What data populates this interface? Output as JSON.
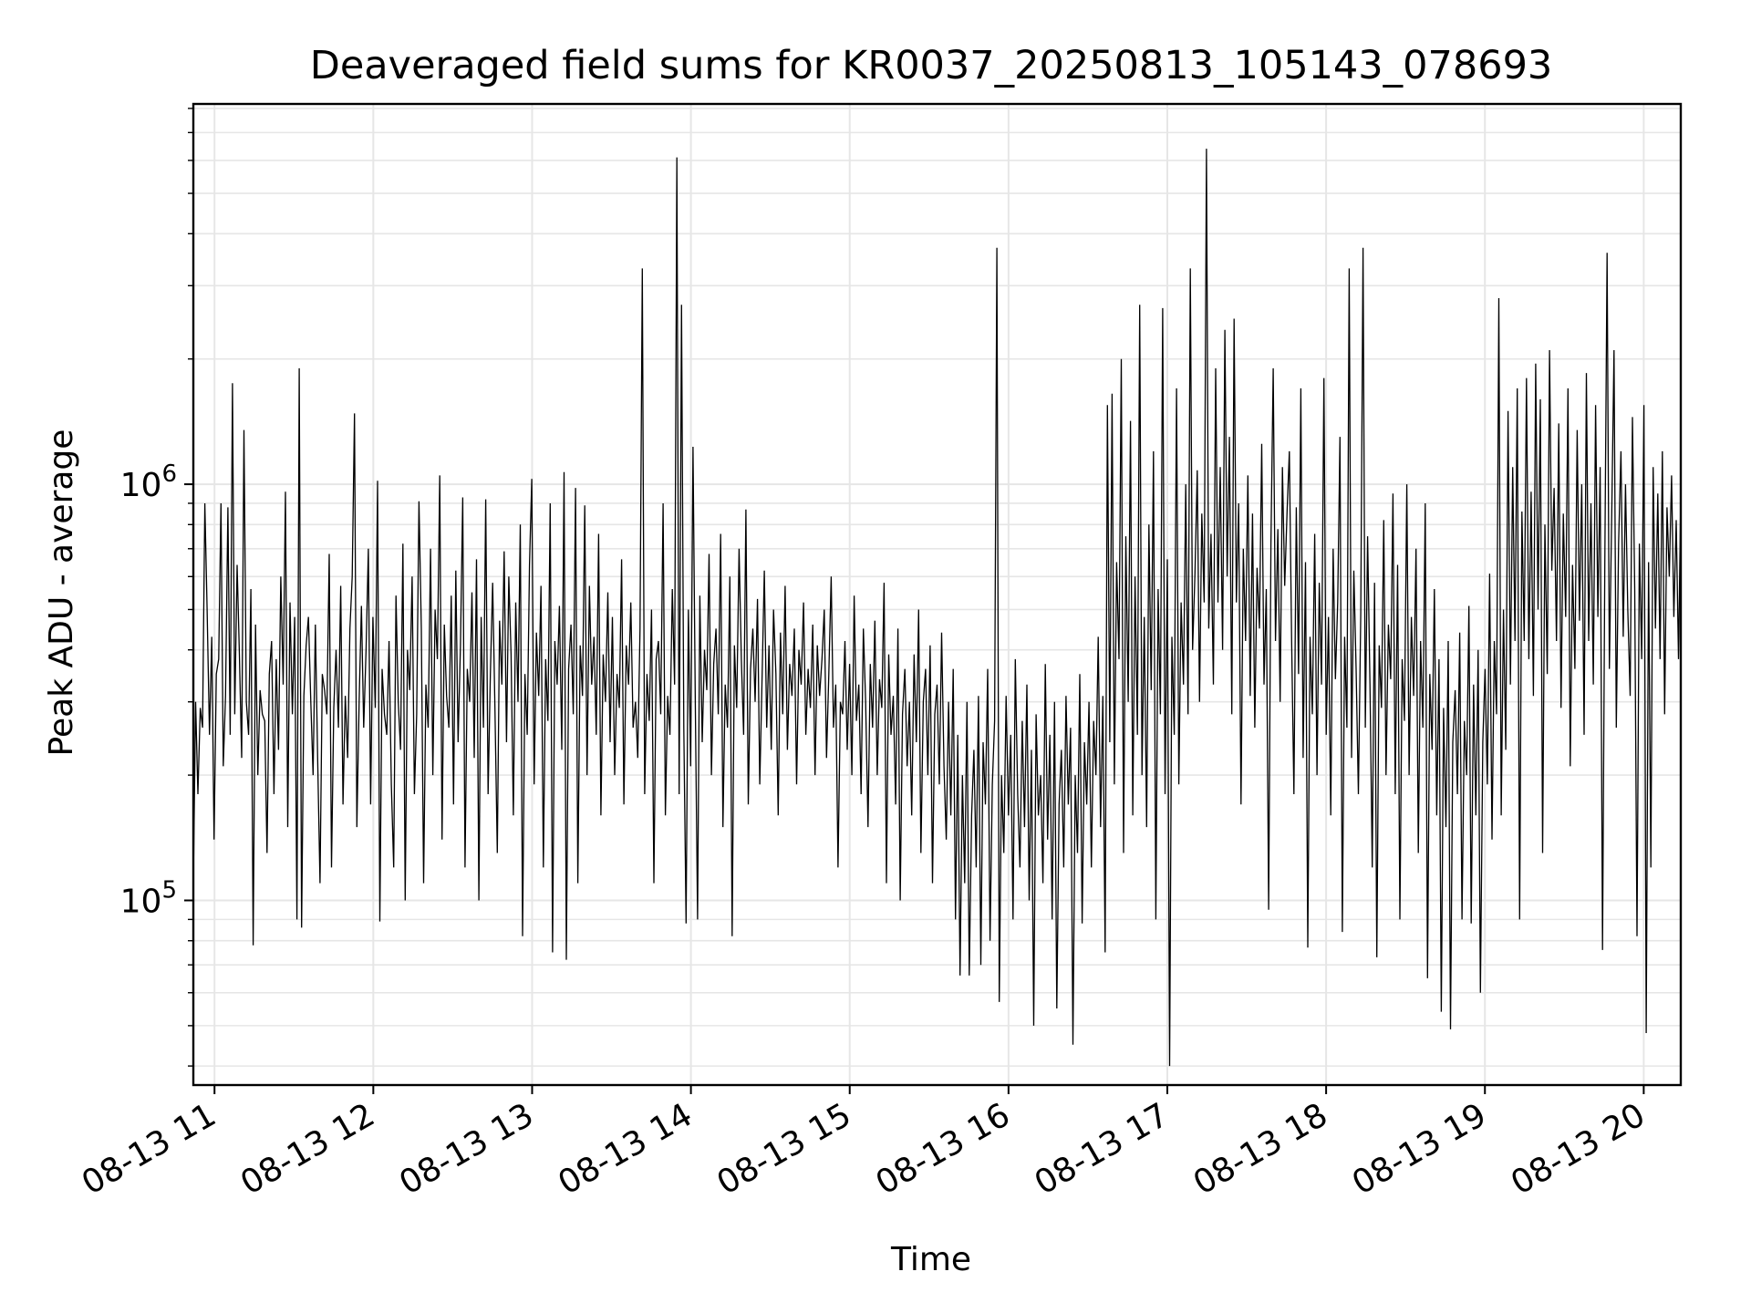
{
  "chart_data": {
    "type": "line",
    "title": "Deaveraged field sums for KR0037_20250813_105143_078693",
    "xlabel": "Time",
    "ylabel": "Peak ADU - average",
    "yscale": "log",
    "ylim": [
      36000,
      8200000
    ],
    "xlim": [
      "2025-08-13 10:52",
      "2025-08-13 20:14"
    ],
    "grid": true,
    "line_color": "#000000",
    "x_ticks": [
      "08-13 11",
      "08-13 12",
      "08-13 13",
      "08-13 14",
      "08-13 15",
      "08-13 16",
      "08-13 17",
      "08-13 18",
      "08-13 19",
      "08-13 20"
    ],
    "y_ticks": [
      {
        "value": 100000,
        "base": "10",
        "exp": "5"
      },
      {
        "value": 1000000,
        "base": "10",
        "exp": "6"
      }
    ],
    "series": [
      {
        "x_start": "2025-08-13 10:52",
        "x_end": "2025-08-13 20:14",
        "values": [
          110000,
          300000,
          180000,
          290000,
          260000,
          900000,
          500000,
          250000,
          430000,
          140000,
          350000,
          380000,
          900000,
          210000,
          310000,
          880000,
          250000,
          1750000,
          280000,
          640000,
          390000,
          220000,
          1350000,
          300000,
          250000,
          560000,
          78000,
          460000,
          200000,
          320000,
          280000,
          270000,
          130000,
          350000,
          420000,
          180000,
          380000,
          230000,
          600000,
          330000,
          960000,
          150000,
          520000,
          280000,
          480000,
          90000,
          1900000,
          86000,
          310000,
          410000,
          480000,
          300000,
          200000,
          460000,
          220000,
          110000,
          350000,
          320000,
          280000,
          680000,
          120000,
          290000,
          400000,
          260000,
          570000,
          170000,
          310000,
          220000,
          450000,
          600000,
          1480000,
          150000,
          300000,
          510000,
          260000,
          400000,
          700000,
          170000,
          480000,
          290000,
          1020000,
          89000,
          360000,
          280000,
          250000,
          420000,
          190000,
          120000,
          540000,
          300000,
          230000,
          720000,
          100000,
          400000,
          320000,
          600000,
          180000,
          280000,
          910000,
          450000,
          110000,
          330000,
          260000,
          700000,
          200000,
          500000,
          380000,
          1050000,
          140000,
          460000,
          310000,
          260000,
          540000,
          170000,
          620000,
          240000,
          410000,
          930000,
          120000,
          360000,
          300000,
          550000,
          220000,
          660000,
          100000,
          480000,
          260000,
          920000,
          180000,
          350000,
          580000,
          290000,
          130000,
          470000,
          330000,
          690000,
          240000,
          600000,
          390000,
          160000,
          520000,
          300000,
          800000,
          82000,
          350000,
          250000,
          640000,
          1030000,
          190000,
          440000,
          310000,
          570000,
          120000,
          380000,
          270000,
          900000,
          75000,
          420000,
          330000,
          510000,
          230000,
          1070000,
          72000,
          360000,
          460000,
          280000,
          980000,
          110000,
          410000,
          310000,
          890000,
          200000,
          570000,
          330000,
          430000,
          250000,
          760000,
          160000,
          390000,
          300000,
          550000,
          240000,
          480000,
          200000,
          350000,
          290000,
          660000,
          170000,
          410000,
          330000,
          520000,
          260000,
          300000,
          220000,
          450000,
          3300000,
          180000,
          350000,
          270000,
          500000,
          110000,
          380000,
          420000,
          280000,
          900000,
          160000,
          310000,
          250000,
          560000,
          330000,
          6100000,
          180000,
          2700000,
          260000,
          88000,
          500000,
          210000,
          1230000,
          300000,
          90000,
          540000,
          240000,
          400000,
          320000,
          680000,
          200000,
          370000,
          450000,
          280000,
          760000,
          150000,
          330000,
          260000,
          600000,
          82000,
          410000,
          290000,
          700000,
          380000,
          250000,
          870000,
          170000,
          360000,
          450000,
          300000,
          530000,
          190000,
          340000,
          620000,
          260000,
          410000,
          230000,
          500000,
          350000,
          160000,
          440000,
          280000,
          570000,
          230000,
          370000,
          310000,
          450000,
          190000,
          400000,
          330000,
          520000,
          250000,
          360000,
          290000,
          460000,
          200000,
          410000,
          310000,
          380000,
          500000,
          220000,
          350000,
          600000,
          260000,
          330000,
          120000,
          300000,
          280000,
          420000,
          230000,
          370000,
          200000,
          540000,
          270000,
          330000,
          180000,
          450000,
          300000,
          150000,
          370000,
          260000,
          470000,
          200000,
          340000,
          290000,
          580000,
          110000,
          390000,
          250000,
          310000,
          170000,
          450000,
          100000,
          280000,
          360000,
          210000,
          300000,
          160000,
          390000,
          240000,
          500000,
          130000,
          300000,
          360000,
          200000,
          410000,
          110000,
          280000,
          330000,
          190000,
          440000,
          210000,
          140000,
          300000,
          160000,
          360000,
          90000,
          250000,
          66000,
          200000,
          110000,
          300000,
          66000,
          160000,
          230000,
          120000,
          310000,
          70000,
          240000,
          170000,
          360000,
          80000,
          190000,
          270000,
          3700000,
          57000,
          200000,
          130000,
          310000,
          160000,
          250000,
          90000,
          380000,
          180000,
          120000,
          270000,
          150000,
          330000,
          100000,
          230000,
          50000,
          280000,
          160000,
          200000,
          110000,
          370000,
          140000,
          250000,
          90000,
          300000,
          55000,
          170000,
          230000,
          120000,
          310000,
          170000,
          260000,
          45000,
          200000,
          130000,
          350000,
          88000,
          240000,
          170000,
          300000,
          120000,
          270000,
          200000,
          430000,
          150000,
          310000,
          75000,
          1550000,
          240000,
          1650000,
          190000,
          650000,
          380000,
          2000000,
          130000,
          750000,
          300000,
          1420000,
          160000,
          600000,
          250000,
          2700000,
          200000,
          480000,
          150000,
          800000,
          320000,
          1200000,
          90000,
          560000,
          280000,
          2650000,
          180000,
          660000,
          40000,
          430000,
          250000,
          1700000,
          190000,
          520000,
          330000,
          1000000,
          280000,
          3300000,
          400000,
          610000,
          1080000,
          300000,
          850000,
          520000,
          6400000,
          450000,
          760000,
          330000,
          1900000,
          520000,
          1100000,
          400000,
          2350000,
          600000,
          1300000,
          280000,
          2500000,
          520000,
          900000,
          170000,
          700000,
          420000,
          1050000,
          310000,
          850000,
          260000,
          630000,
          450000,
          1250000,
          330000,
          560000,
          95000,
          720000,
          1900000,
          420000,
          780000,
          300000,
          1100000,
          570000,
          860000,
          1200000,
          420000,
          180000,
          880000,
          350000,
          1700000,
          220000,
          650000,
          77000,
          430000,
          280000,
          760000,
          200000,
          580000,
          330000,
          1800000,
          250000,
          480000,
          160000,
          700000,
          340000,
          520000,
          1300000,
          84000,
          430000,
          260000,
          3300000,
          220000,
          620000,
          360000,
          180000,
          490000,
          3700000,
          260000,
          750000,
          330000,
          120000,
          580000,
          73000,
          410000,
          290000,
          820000,
          200000,
          460000,
          340000,
          950000,
          180000,
          640000,
          90000,
          380000,
          270000,
          1000000,
          200000,
          480000,
          310000,
          700000,
          130000,
          420000,
          260000,
          900000,
          65000,
          350000,
          230000,
          560000,
          160000,
          380000,
          54000,
          290000,
          150000,
          420000,
          49000,
          240000,
          320000,
          180000,
          440000,
          90000,
          270000,
          200000,
          510000,
          88000,
          330000,
          160000,
          400000,
          60000,
          240000,
          360000,
          190000,
          610000,
          140000,
          420000,
          280000,
          2800000,
          160000,
          500000,
          230000,
          1500000,
          330000,
          1100000,
          420000,
          1700000,
          90000,
          860000,
          420000,
          1800000,
          380000,
          960000,
          310000,
          1950000,
          500000,
          1600000,
          130000,
          800000,
          350000,
          2100000,
          620000,
          980000,
          420000,
          1400000,
          290000,
          850000,
          480000,
          1700000,
          210000,
          640000,
          360000,
          1350000,
          470000,
          1000000,
          250000,
          1850000,
          420000,
          900000,
          330000,
          1550000,
          480000,
          1100000,
          76000,
          640000,
          3600000,
          360000,
          850000,
          2100000,
          260000,
          720000,
          1200000,
          430000,
          1000000,
          500000,
          310000,
          1450000,
          560000,
          82000,
          720000,
          380000,
          1550000,
          48000,
          650000,
          120000,
          1100000,
          450000,
          950000,
          380000,
          1200000,
          280000,
          880000,
          600000,
          1050000,
          480000,
          820000,
          380000,
          950000
        ]
      }
    ]
  }
}
